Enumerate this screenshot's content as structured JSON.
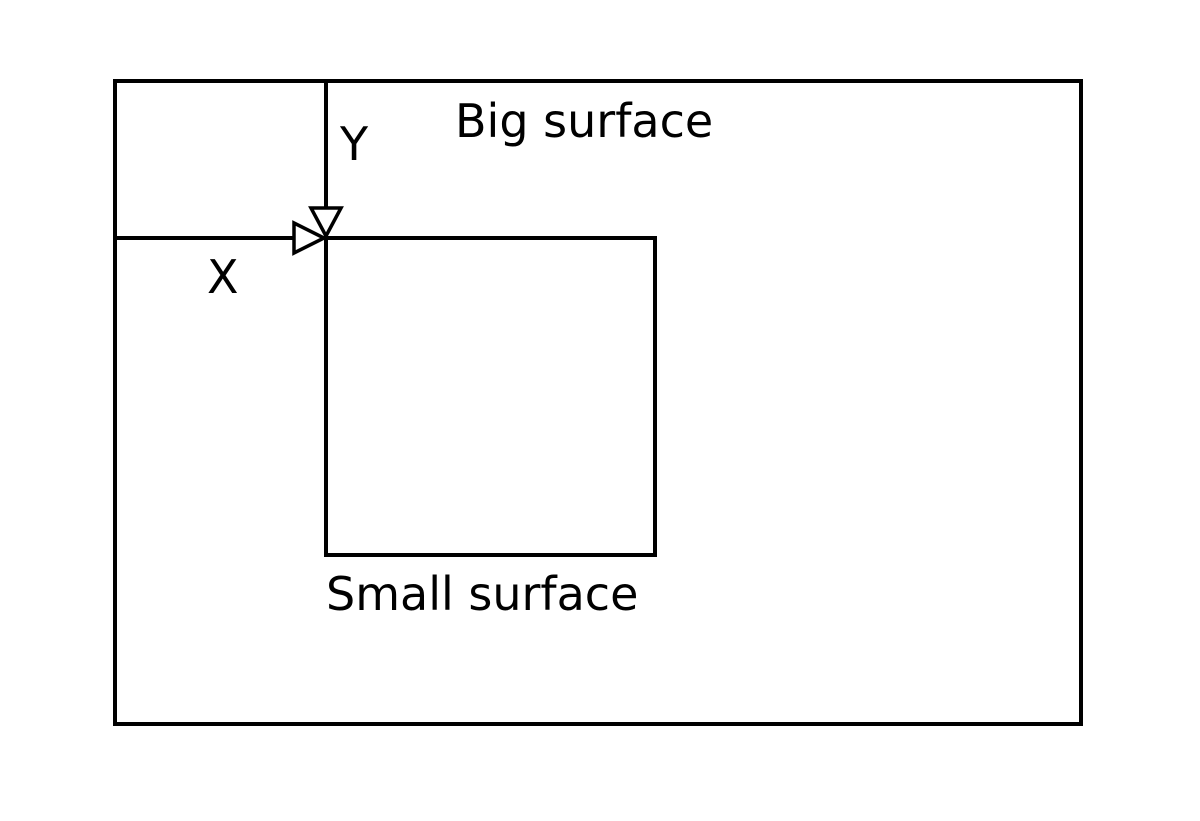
{
  "diagram": {
    "big_surface_label": "Big surface",
    "small_surface_label": "Small surface",
    "x_label": "X",
    "y_label": "Y",
    "stroke_color": "#000000",
    "background_color": "#ffffff"
  }
}
